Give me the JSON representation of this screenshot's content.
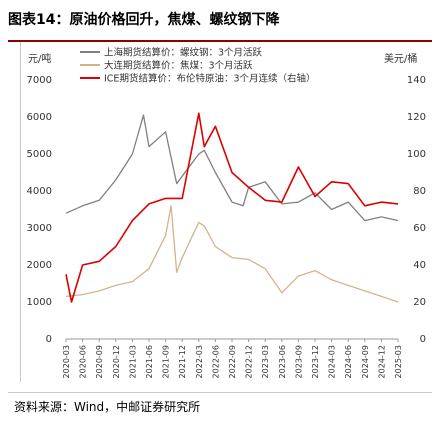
{
  "header": {
    "title": "图表14：原油价格回升，焦煤、螺纹钢下降"
  },
  "footer": {
    "source": "资料来源：Wind，中邮证券研究所"
  },
  "chart_data": {
    "type": "line",
    "ylabel_left": "元/吨",
    "ylabel_right": "美元/桶",
    "ylim_left": [
      0,
      7000
    ],
    "ylim_right": [
      0,
      140
    ],
    "yticks_left": [
      "0",
      "1000",
      "2000",
      "3000",
      "4000",
      "5000",
      "6000",
      "7000"
    ],
    "yticks_right": [
      "0",
      "20",
      "40",
      "60",
      "80",
      "100",
      "120",
      "140"
    ],
    "xticks": [
      "2020-03",
      "2020-06",
      "2020-09",
      "2020-12",
      "2021-03",
      "2021-06",
      "2021-09",
      "2021-12",
      "2022-03",
      "2022-06",
      "2022-09",
      "2022-12",
      "2023-03",
      "2023-06",
      "2023-09",
      "2023-12",
      "2024-03",
      "2024-06",
      "2024-09",
      "2024-12",
      "2025-03"
    ],
    "legend": "top",
    "series": [
      {
        "name": "上海期货结算价：螺纹钢：3个月活跃",
        "axis": "left",
        "color": "#808080",
        "x": [
          "2020-03",
          "2020-06",
          "2020-09",
          "2020-12",
          "2021-03",
          "2021-05",
          "2021-06",
          "2021-09",
          "2021-11",
          "2021-12",
          "2022-03",
          "2022-04",
          "2022-06",
          "2022-09",
          "2022-11",
          "2022-12",
          "2023-03",
          "2023-06",
          "2023-09",
          "2023-12",
          "2024-03",
          "2024-06",
          "2024-09",
          "2024-12",
          "2025-03"
        ],
        "values": [
          3400,
          3600,
          3750,
          4300,
          5000,
          6050,
          5200,
          5600,
          4200,
          4400,
          5000,
          5100,
          4500,
          3700,
          3600,
          4100,
          4250,
          3650,
          3700,
          3950,
          3500,
          3700,
          3200,
          3300,
          3200
        ]
      },
      {
        "name": "大连期货结算价：焦煤：3个月活跃",
        "axis": "left",
        "color": "#d2b48c",
        "x": [
          "2020-03",
          "2020-06",
          "2020-09",
          "2020-12",
          "2021-03",
          "2021-06",
          "2021-09",
          "2021-10",
          "2021-11",
          "2021-12",
          "2022-03",
          "2022-04",
          "2022-06",
          "2022-09",
          "2022-12",
          "2023-03",
          "2023-06",
          "2023-09",
          "2023-12",
          "2024-03",
          "2024-06",
          "2024-09",
          "2024-12",
          "2025-03"
        ],
        "values": [
          1150,
          1200,
          1300,
          1450,
          1550,
          1900,
          2800,
          3600,
          1800,
          2200,
          3150,
          3050,
          2500,
          2200,
          2150,
          1900,
          1250,
          1700,
          1850,
          1600,
          1450,
          1300,
          1150,
          1000
        ]
      },
      {
        "name": "ICE期货结算价：布伦特原油：3个月连续（右轴）",
        "axis": "right",
        "color": "#dd0000",
        "x": [
          "2020-03",
          "2020-04",
          "2020-06",
          "2020-09",
          "2020-12",
          "2021-03",
          "2021-06",
          "2021-09",
          "2021-12",
          "2022-03",
          "2022-04",
          "2022-06",
          "2022-09",
          "2022-12",
          "2023-03",
          "2023-06",
          "2023-09",
          "2023-12",
          "2024-03",
          "2024-06",
          "2024-09",
          "2024-12",
          "2025-03"
        ],
        "values": [
          35,
          20,
          40,
          42,
          50,
          64,
          73,
          76,
          76,
          122,
          104,
          115,
          90,
          82,
          75,
          74,
          93,
          77,
          85,
          84,
          72,
          74,
          73
        ]
      }
    ]
  }
}
